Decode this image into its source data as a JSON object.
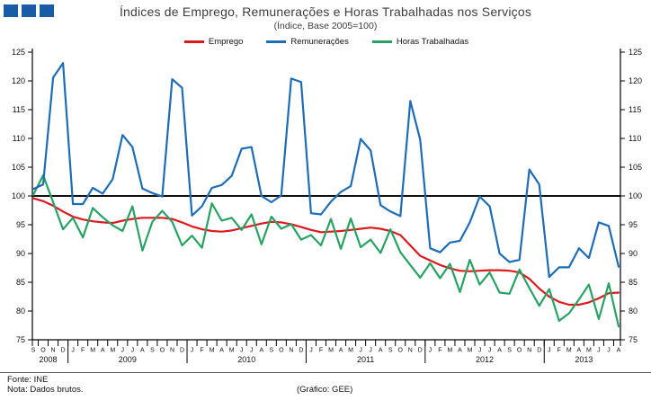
{
  "header": {
    "title": "Índices de Emprego,  Remunerações e Horas Trabalhadas nos Serviços",
    "subtitle": "(Índice, Base 2005=100)",
    "logo_square_color": "#1a5ba6",
    "logo_square_count": 3
  },
  "legend": [
    {
      "label": "Emprego",
      "color": "#dc1a1e"
    },
    {
      "label": "Remunerações",
      "color": "#1e6cb5"
    },
    {
      "label": "Horas Trabalhadas",
      "color": "#27a263"
    }
  ],
  "footer": {
    "source": "Fonte: INE",
    "note": "Nota: Dados  brutos.",
    "credit": "(Gráfico: GEE)"
  },
  "chart_data": {
    "type": "line",
    "title": "Índices de Emprego, Remunerações e Horas Trabalhadas nos Serviços",
    "subtitle": "(Índice, Base 2005=100)",
    "ylim": [
      75,
      125
    ],
    "yticks": [
      75,
      80,
      85,
      90,
      95,
      100,
      105,
      110,
      115,
      120,
      125
    ],
    "baseline": 100,
    "grid": false,
    "legend_position": "top-center",
    "x_months": [
      "S",
      "O",
      "N",
      "D",
      "J",
      "F",
      "M",
      "A",
      "M",
      "J",
      "J",
      "A",
      "S",
      "O",
      "N",
      "D",
      "J",
      "F",
      "M",
      "A",
      "M",
      "J",
      "J",
      "A",
      "S",
      "O",
      "N",
      "D",
      "J",
      "F",
      "M",
      "A",
      "M",
      "J",
      "J",
      "A",
      "S",
      "O",
      "N",
      "D",
      "J",
      "F",
      "M",
      "A",
      "M",
      "J",
      "J",
      "A",
      "S",
      "O",
      "N",
      "D",
      "J",
      "F",
      "M",
      "A",
      "M",
      "J",
      "J",
      "A"
    ],
    "year_groups": [
      {
        "label": "2008",
        "count": 4
      },
      {
        "label": "2009",
        "count": 12
      },
      {
        "label": "2010",
        "count": 12
      },
      {
        "label": "2011",
        "count": 12
      },
      {
        "label": "2012",
        "count": 12
      },
      {
        "label": "2013",
        "count": 8
      }
    ],
    "series": [
      {
        "name": "Emprego",
        "color": "#dc1a1e",
        "values": [
          99.6,
          99.1,
          98.3,
          97.3,
          96.4,
          95.9,
          95.6,
          95.4,
          95.3,
          95.7,
          96.0,
          96.2,
          96.2,
          96.2,
          96.0,
          95.4,
          94.7,
          94.2,
          93.9,
          93.8,
          94.0,
          94.4,
          94.8,
          95.2,
          95.5,
          95.4,
          95.1,
          94.6,
          94.1,
          93.7,
          93.8,
          93.9,
          94.1,
          94.3,
          94.5,
          94.3,
          93.9,
          93.2,
          91.4,
          89.6,
          88.8,
          88.0,
          87.4,
          87.0,
          86.9,
          87.0,
          87.1,
          87.1,
          87.0,
          86.7,
          85.6,
          83.9,
          82.5,
          81.6,
          81.1,
          81.1,
          81.5,
          82.2,
          83.1,
          83.2
        ]
      },
      {
        "name": "Remunerações",
        "color": "#1e6cb5",
        "values": [
          101.2,
          102.0,
          120.6,
          123.1,
          98.6,
          98.6,
          101.4,
          100.4,
          102.9,
          110.6,
          108.5,
          101.3,
          100.5,
          99.9,
          120.3,
          118.8,
          96.6,
          98.2,
          101.4,
          101.9,
          103.5,
          108.2,
          108.5,
          100.0,
          98.9,
          100.1,
          120.4,
          119.8,
          97.0,
          96.8,
          99.0,
          100.7,
          101.7,
          109.9,
          107.9,
          98.4,
          97.3,
          96.5,
          116.5,
          109.8,
          90.9,
          90.2,
          91.9,
          92.2,
          95.4,
          99.9,
          98.2,
          90.0,
          88.5,
          88.9,
          104.6,
          102.0,
          85.9,
          87.6,
          87.6,
          90.9,
          89.2,
          95.4,
          94.8,
          87.7
        ]
      },
      {
        "name": "Horas Trabalhadas",
        "color": "#27a263",
        "values": [
          100.2,
          103.6,
          98.9,
          94.2,
          96.2,
          92.8,
          97.9,
          96.3,
          94.9,
          93.9,
          98.2,
          90.5,
          95.5,
          97.4,
          95.5,
          91.4,
          93.1,
          91.0,
          98.7,
          95.7,
          96.2,
          94.1,
          96.8,
          91.6,
          96.4,
          94.3,
          95.1,
          92.4,
          93.2,
          91.4,
          96.0,
          90.8,
          96.1,
          91.1,
          92.4,
          90.1,
          94.2,
          90.2,
          88.0,
          85.8,
          88.3,
          85.7,
          88.2,
          83.3,
          88.9,
          84.6,
          86.7,
          83.2,
          83.0,
          87.2,
          84.0,
          80.9,
          83.8,
          78.3,
          79.6,
          82.0,
          84.6,
          78.6,
          84.8,
          77.3
        ]
      }
    ]
  }
}
